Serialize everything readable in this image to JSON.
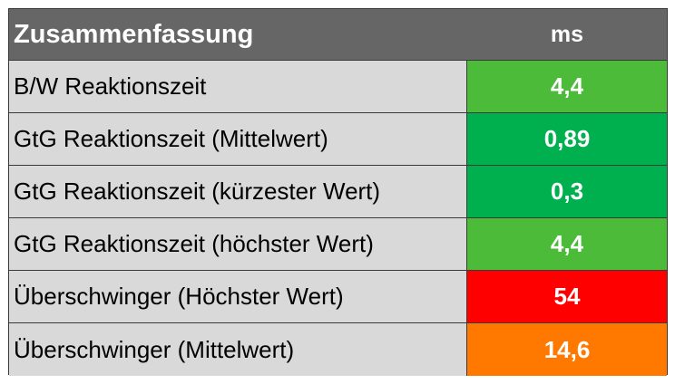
{
  "table": {
    "header_label": "Zusammenfassung",
    "header_unit": "ms",
    "rows": [
      {
        "label": "B/W Reaktionszeit",
        "value": "4,4",
        "color": "#4dbb3a"
      },
      {
        "label": "GtG Reaktionszeit (Mittelwert)",
        "value": "0,89",
        "color": "#00b04f"
      },
      {
        "label": "GtG Reaktionszeit (kürzester Wert)",
        "value": "0,3",
        "color": "#00b04f"
      },
      {
        "label": "GtG Reaktionszeit (höchster Wert)",
        "value": "4,4",
        "color": "#4dbb3a"
      },
      {
        "label": "Überschwinger (Höchster Wert)",
        "value": "54",
        "color": "#ff0000"
      },
      {
        "label": "Überschwinger (Mittelwert)",
        "value": "14,6",
        "color": "#ff7900"
      }
    ]
  }
}
